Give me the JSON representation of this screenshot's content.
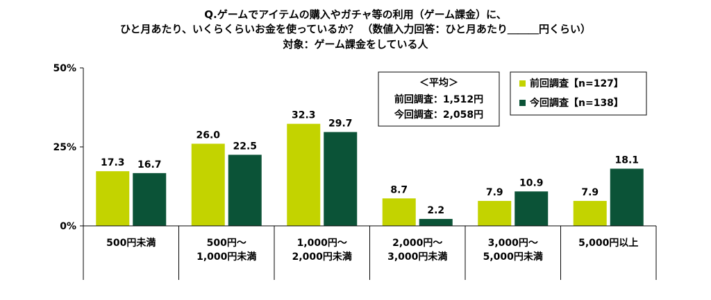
{
  "chart_data": {
    "type": "bar",
    "title": [
      "Q.ゲームでアイテムの購入やガチャ等の利用（ゲーム課金）に、",
      "ひと月あたり、いくらくらいお金を使っているか？ （数値入力回答：ひと月あたり＿＿＿円くらい）",
      "対象：ゲーム課金をしている人"
    ],
    "categories": [
      [
        "500円未満"
      ],
      [
        "500円～",
        "1,000円未満"
      ],
      [
        "1,000円～",
        "2,000円未満"
      ],
      [
        "2,000円～",
        "3,000円未満"
      ],
      [
        "3,000円～",
        "5,000円未満"
      ],
      [
        "5,000円以上"
      ]
    ],
    "series": [
      {
        "name": "前回調査【n=127】",
        "color": "#c3d300",
        "values": [
          17.3,
          26.0,
          32.3,
          8.7,
          7.9,
          7.9
        ]
      },
      {
        "name": "今回調査【n=138】",
        "color": "#0b5337",
        "values": [
          16.7,
          22.5,
          29.7,
          2.2,
          10.9,
          18.1
        ]
      }
    ],
    "ylim": [
      0,
      50
    ],
    "yticks": [
      0,
      25,
      50
    ],
    "ytick_labels": [
      "0%",
      "25%",
      "50%"
    ],
    "average_box": {
      "heading": "＜平均＞",
      "lines": [
        "前回調査：1,512円",
        "今回調査：2,058円"
      ]
    },
    "legend_position": "top-right"
  }
}
